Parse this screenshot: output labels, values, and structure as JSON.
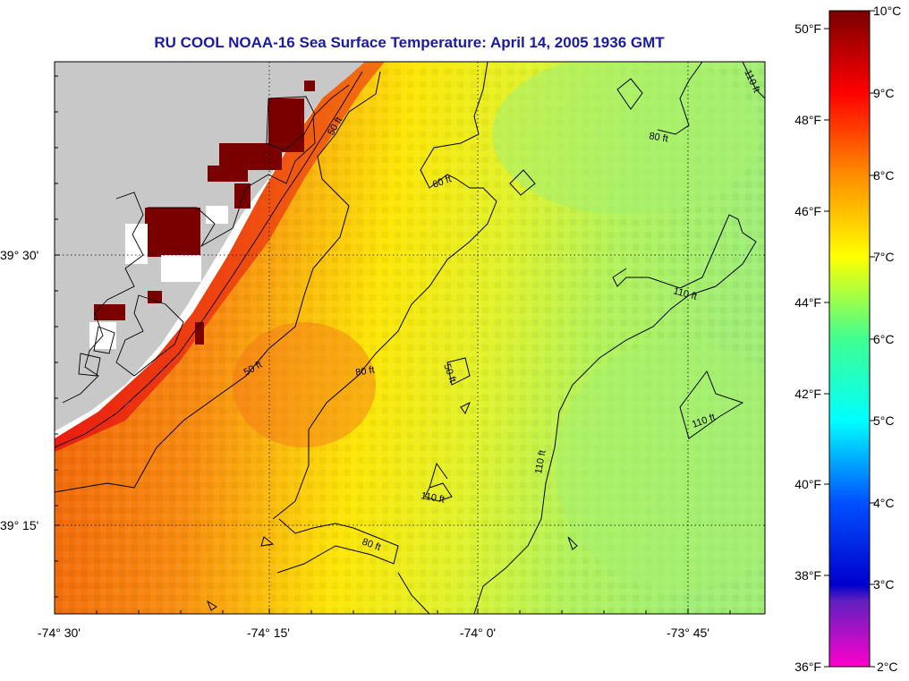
{
  "title": "RU COOL  NOAA-16  Sea Surface Temperature:  April 14, 2005 1936 GMT",
  "axes": {
    "x_ticks": [
      "-74° 30'",
      "-74° 15'",
      "-74° 0'",
      "-73° 45'"
    ],
    "y_ticks": [
      "39° 30'",
      "39° 15'"
    ]
  },
  "contour_labels": {
    "c1": "50 ft",
    "c2": "50 ft",
    "c3": "60 ft",
    "c4": "80 ft",
    "c5": "80 ft",
    "c6": "50 ft",
    "c7": "110 ft",
    "c8": "110 ft",
    "c9": "110 ft",
    "c10": "110 ft",
    "c11": "80 ft",
    "c12": "110 ft"
  },
  "colorbar": {
    "fahrenheit": [
      "50°F",
      "48°F",
      "46°F",
      "44°F",
      "42°F",
      "40°F",
      "38°F",
      "36°F"
    ],
    "celsius": [
      "10°C",
      "9°C",
      "8°C",
      "7°C",
      "6°C",
      "5°C",
      "4°C",
      "3°C",
      "2°C"
    ]
  },
  "colors": {
    "title": "#1a1aa8",
    "land": "#c8c8c8",
    "cloud": "#7a0000",
    "scale_warm": "#d40000",
    "scale_mid": "#ffff00",
    "scale_cool": "#00ffff",
    "scale_cold": "#ff00cc"
  }
}
